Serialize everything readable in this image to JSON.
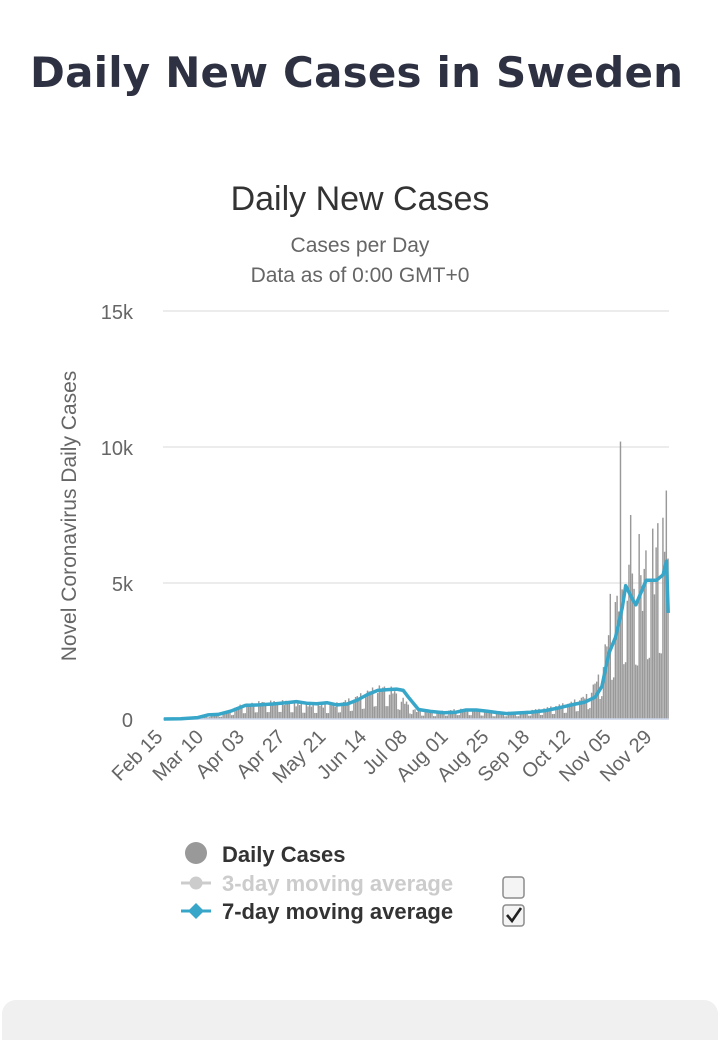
{
  "page": {
    "title": "Daily New Cases in Sweden"
  },
  "colors": {
    "bars": "#999999",
    "ma7": "#37a6c8",
    "ma3": "#cccccc",
    "grid": "#e6e6e6",
    "title": "#2e3142"
  },
  "chart_data": {
    "type": "bar",
    "title": "Daily New Cases",
    "subtitle": "Cases per Day",
    "subtitle2": "Data as of 0:00 GMT+0",
    "ylabel": "Novel Coronavirus Daily Cases",
    "xlabel": "",
    "ylim": [
      0,
      15000
    ],
    "yticks": [
      {
        "value": 0,
        "label": "0"
      },
      {
        "value": 5000,
        "label": "5k"
      },
      {
        "value": 10000,
        "label": "10k"
      },
      {
        "value": 15000,
        "label": "15k"
      }
    ],
    "x_start_date": "Feb 15",
    "num_days": 298,
    "xticks": [
      {
        "day": 0,
        "label": "Feb 15"
      },
      {
        "day": 24,
        "label": "Mar 10"
      },
      {
        "day": 48,
        "label": "Apr 03"
      },
      {
        "day": 72,
        "label": "Apr 27"
      },
      {
        "day": 96,
        "label": "May 21"
      },
      {
        "day": 120,
        "label": "Jun 14"
      },
      {
        "day": 144,
        "label": "Jul 08"
      },
      {
        "day": 168,
        "label": "Aug 01"
      },
      {
        "day": 192,
        "label": "Aug 25"
      },
      {
        "day": 216,
        "label": "Sep 18"
      },
      {
        "day": 240,
        "label": "Oct 12"
      },
      {
        "day": 264,
        "label": "Nov 05"
      },
      {
        "day": 288,
        "label": "Nov 29"
      }
    ],
    "series": [
      {
        "name": "Daily Cases",
        "type": "bar",
        "trend_anchors": [
          [
            0,
            5
          ],
          [
            20,
            30
          ],
          [
            27,
            150
          ],
          [
            36,
            200
          ],
          [
            45,
            450
          ],
          [
            55,
            550
          ],
          [
            70,
            580
          ],
          [
            85,
            500
          ],
          [
            100,
            480
          ],
          [
            110,
            650
          ],
          [
            118,
            850
          ],
          [
            125,
            1050
          ],
          [
            133,
            1050
          ],
          [
            140,
            700
          ],
          [
            148,
            300
          ],
          [
            160,
            230
          ],
          [
            175,
            330
          ],
          [
            185,
            300
          ],
          [
            195,
            220
          ],
          [
            210,
            230
          ],
          [
            225,
            350
          ],
          [
            240,
            550
          ],
          [
            250,
            800
          ],
          [
            256,
            1400
          ],
          [
            262,
            2800
          ],
          [
            268,
            4000
          ],
          [
            273,
            4800
          ],
          [
            280,
            4300
          ],
          [
            286,
            5000
          ],
          [
            292,
            5400
          ],
          [
            297,
            5200
          ]
        ],
        "peaks": [
          {
            "day": 263,
            "value": 4600
          },
          {
            "day": 266,
            "value": 4300
          },
          {
            "day": 269,
            "value": 10200
          },
          {
            "day": 275,
            "value": 7500
          },
          {
            "day": 280,
            "value": 6800
          },
          {
            "day": 284,
            "value": 6200
          },
          {
            "day": 288,
            "value": 7000
          },
          {
            "day": 291,
            "value": 7200
          },
          {
            "day": 294,
            "value": 7400
          },
          {
            "day": 296,
            "value": 8400
          },
          {
            "day": 297,
            "value": 5900
          }
        ]
      },
      {
        "name": "3-day moving average",
        "type": "line",
        "visible": false
      },
      {
        "name": "7-day moving average",
        "type": "line",
        "visible": true,
        "points": [
          [
            0,
            0
          ],
          [
            10,
            10
          ],
          [
            20,
            50
          ],
          [
            26,
            150
          ],
          [
            32,
            170
          ],
          [
            40,
            300
          ],
          [
            48,
            500
          ],
          [
            56,
            520
          ],
          [
            64,
            550
          ],
          [
            72,
            600
          ],
          [
            78,
            640
          ],
          [
            84,
            580
          ],
          [
            90,
            560
          ],
          [
            96,
            600
          ],
          [
            102,
            520
          ],
          [
            108,
            550
          ],
          [
            114,
            700
          ],
          [
            120,
            900
          ],
          [
            126,
            1050
          ],
          [
            132,
            1080
          ],
          [
            137,
            1100
          ],
          [
            141,
            1050
          ],
          [
            144,
            800
          ],
          [
            150,
            350
          ],
          [
            157,
            280
          ],
          [
            165,
            230
          ],
          [
            172,
            250
          ],
          [
            178,
            330
          ],
          [
            184,
            330
          ],
          [
            190,
            290
          ],
          [
            196,
            240
          ],
          [
            202,
            200
          ],
          [
            208,
            220
          ],
          [
            216,
            250
          ],
          [
            224,
            300
          ],
          [
            232,
            400
          ],
          [
            240,
            520
          ],
          [
            248,
            620
          ],
          [
            254,
            800
          ],
          [
            258,
            1200
          ],
          [
            262,
            2400
          ],
          [
            266,
            3000
          ],
          [
            270,
            4100
          ],
          [
            272,
            4900
          ],
          [
            276,
            4400
          ],
          [
            278,
            4200
          ],
          [
            284,
            5100
          ],
          [
            290,
            5100
          ],
          [
            294,
            5300
          ],
          [
            296,
            5800
          ],
          [
            297,
            3900
          ]
        ]
      }
    ],
    "legend": [
      {
        "label": "Daily Cases",
        "checkbox": null
      },
      {
        "label": "3-day moving average",
        "checked": false
      },
      {
        "label": "7-day moving average",
        "checked": true
      }
    ]
  }
}
